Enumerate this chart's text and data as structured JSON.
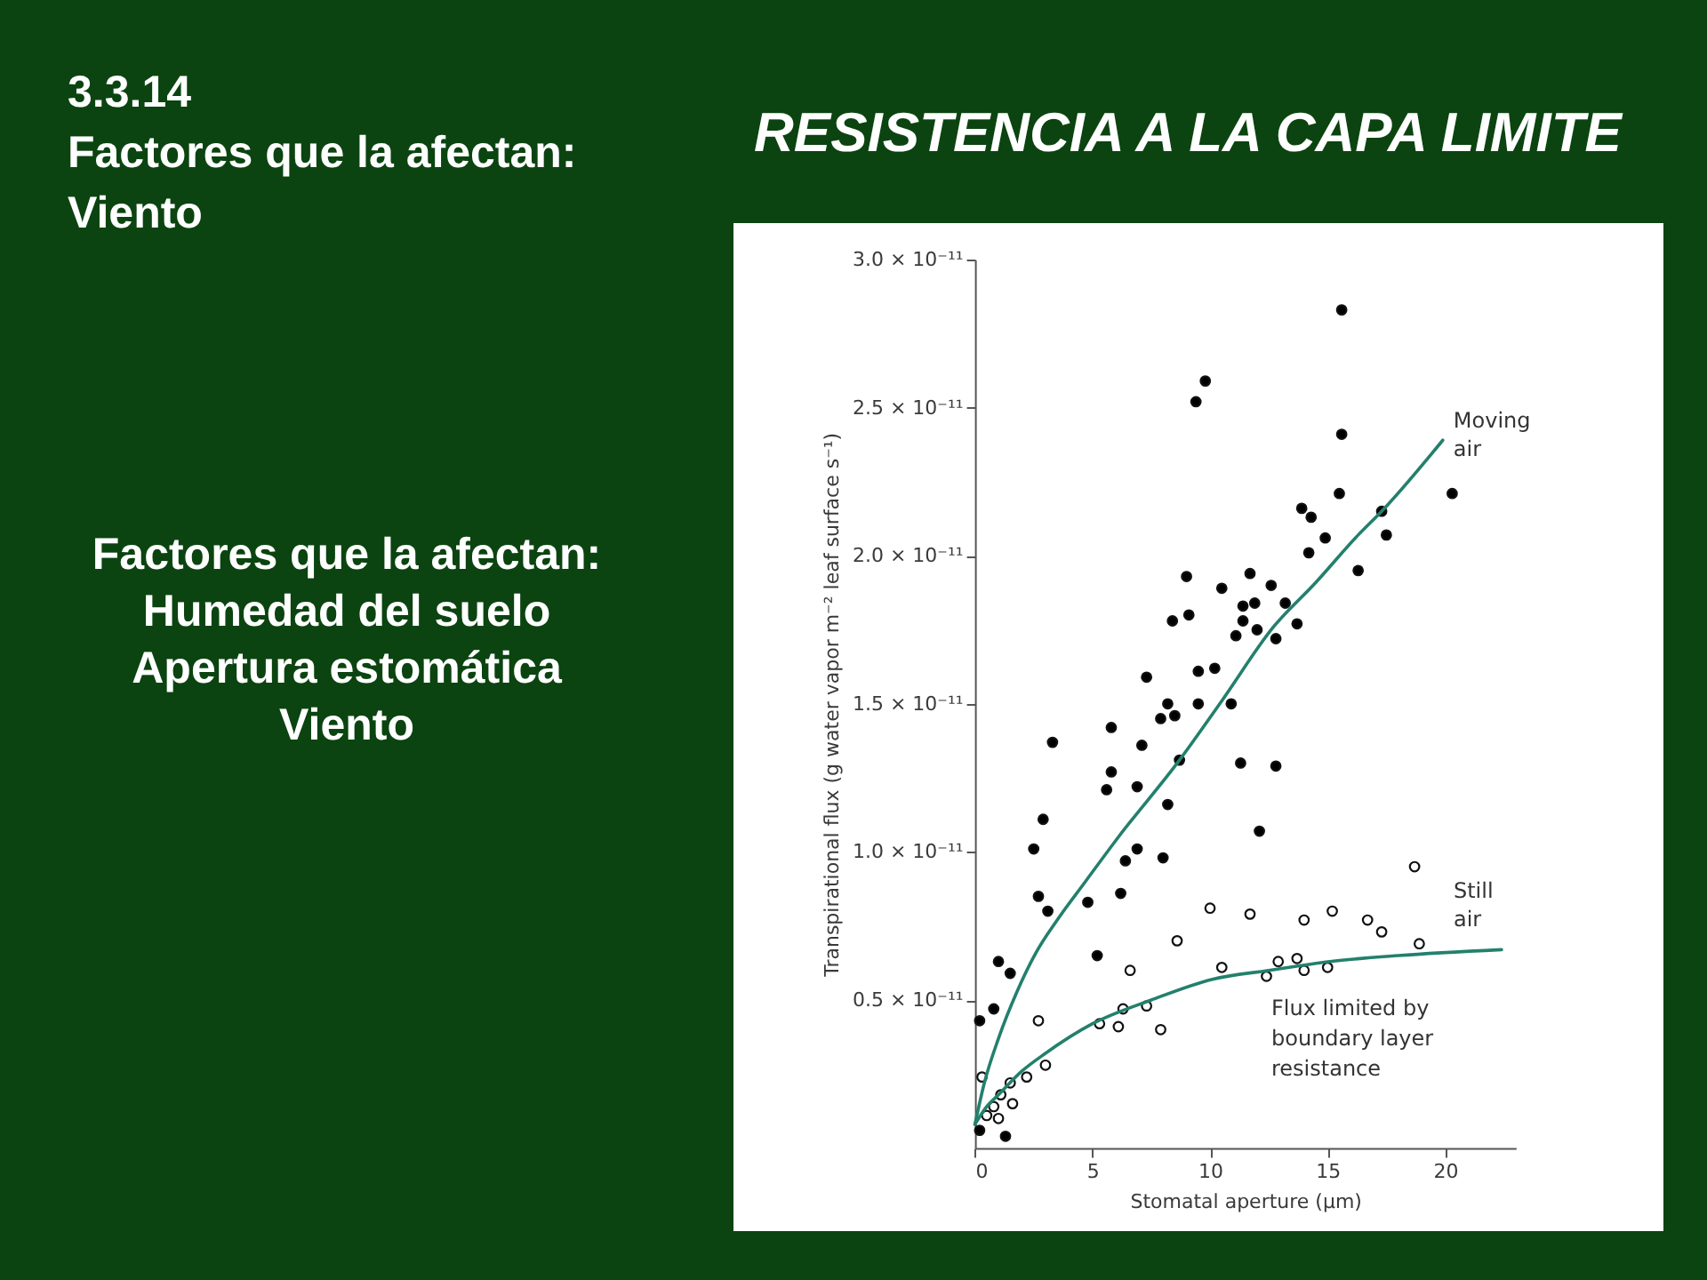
{
  "chart_data": {
    "type": "scatter",
    "title": "RESISTENCIA A LA CAPA LIMITE",
    "xlabel": "Stomatal aperture (μm)",
    "ylabel": "Transpirational flux (g water vapor  m⁻² leaf surface  s⁻¹)",
    "xlim": [
      0,
      23
    ],
    "xticks": [
      0,
      5,
      10,
      15,
      20
    ],
    "ylim": [
      0,
      3e-11
    ],
    "yticks": [
      {
        "value": 5e-12,
        "label": "0.5 × 10⁻¹¹"
      },
      {
        "value": 1e-11,
        "label": "1.0 × 10⁻¹¹"
      },
      {
        "value": 1.5e-11,
        "label": "1.5 × 10⁻¹¹"
      },
      {
        "value": 2e-11,
        "label": "2.0 × 10⁻¹¹"
      },
      {
        "value": 2.5e-11,
        "label": "2.5 × 10⁻¹¹"
      },
      {
        "value": 3e-11,
        "label": "3.0 × 10⁻¹¹"
      }
    ],
    "grid": false,
    "marker": "circle",
    "series": [
      {
        "color": "#000000",
        "x": [
          15.6,
          9.8,
          9.4,
          15.6,
          15.5,
          20.3,
          13.9,
          14.3,
          17.3,
          17.5,
          14.9,
          14.2,
          16.3,
          9.0,
          11.7,
          10.5,
          12.6,
          11.4,
          11.9,
          13.2,
          8.4,
          9.1,
          11.4,
          13.7,
          11.1,
          12.0,
          12.8,
          7.3,
          9.5,
          10.2,
          8.2,
          9.5,
          10.9,
          7.9,
          8.5,
          5.8,
          3.3,
          7.1,
          8.7,
          11.3,
          12.8,
          5.8,
          5.6,
          6.9,
          8.2,
          2.9,
          2.5,
          6.9,
          12.1,
          6.4,
          8.0,
          2.7,
          3.1,
          4.8,
          6.2,
          5.2,
          1.0,
          1.5,
          0.2,
          0.8,
          0.2,
          1.3
        ],
        "values": [
          2.83e-11,
          2.59e-11,
          2.52e-11,
          2.41e-11,
          2.21e-11,
          2.21e-11,
          2.16e-11,
          2.13e-11,
          2.15e-11,
          2.07e-11,
          2.06e-11,
          2.01e-11,
          1.95e-11,
          1.93e-11,
          1.94e-11,
          1.89e-11,
          1.9e-11,
          1.83e-11,
          1.84e-11,
          1.84e-11,
          1.78e-11,
          1.8e-11,
          1.78e-11,
          1.77e-11,
          1.73e-11,
          1.75e-11,
          1.72e-11,
          1.59e-11,
          1.61e-11,
          1.62e-11,
          1.5e-11,
          1.5e-11,
          1.5e-11,
          1.45e-11,
          1.46e-11,
          1.42e-11,
          1.37e-11,
          1.36e-11,
          1.31e-11,
          1.3e-11,
          1.29e-11,
          1.27e-11,
          1.21e-11,
          1.22e-11,
          1.16e-11,
          1.11e-11,
          1.01e-11,
          1.01e-11,
          1.07e-11,
          9.7e-12,
          9.8e-12,
          8.5e-12,
          8e-12,
          8.3e-12,
          8.6e-12,
          6.5e-12,
          6.3e-12,
          5.9e-12,
          4.3e-12,
          4.7e-12,
          6e-13,
          4e-13
        ]
      },
      {
        "color": "#ffffff",
        "x": [
          18.7,
          10.0,
          11.7,
          14.0,
          15.2,
          16.7,
          17.3,
          18.9,
          8.6,
          10.5,
          12.9,
          13.7,
          15.0,
          14.0,
          12.4,
          6.6,
          6.3,
          7.3,
          5.3,
          6.1,
          7.9,
          2.7,
          2.2,
          3.0,
          0.3,
          1.5,
          1.1,
          0.8,
          1.0,
          1.6,
          0.5
        ],
        "values": [
          9.5e-12,
          8.1e-12,
          7.9e-12,
          7.7e-12,
          8e-12,
          7.7e-12,
          7.3e-12,
          6.9e-12,
          7e-12,
          6.1e-12,
          6.3e-12,
          6.4e-12,
          6.1e-12,
          6e-12,
          5.8e-12,
          6e-12,
          4.7e-12,
          4.8e-12,
          4.2e-12,
          4.1e-12,
          4e-12,
          4.3e-12,
          2.4e-12,
          2.8e-12,
          2.4e-12,
          2.2e-12,
          1.8e-12,
          1.4e-12,
          1e-12,
          1.5e-12,
          1.1e-12
        ]
      },
      {
        "type": "line",
        "name": "Moving air",
        "color": "#23806c",
        "marker": "none",
        "x": [
          0,
          0.4,
          1,
          1.8,
          2.6,
          3.5,
          4.7,
          6.1,
          8.7,
          10.5,
          12.7,
          14.5,
          16.3,
          17.3,
          19.9
        ],
        "values": [
          8e-13,
          2.2e-12,
          3.7e-12,
          5.3e-12,
          6.6e-12,
          7.7e-12,
          9e-12,
          1.05e-11,
          1.31e-11,
          1.51e-11,
          1.76e-11,
          1.91e-11,
          2.07e-11,
          2.15e-11,
          2.39e-11
        ]
      },
      {
        "type": "line",
        "name": "Still air",
        "color": "#23806c",
        "marker": "none",
        "x": [
          0,
          0.5,
          1,
          2,
          3,
          5,
          7.5,
          10.1,
          12.5,
          15.1,
          18,
          22.4
        ],
        "values": [
          8e-13,
          1.4e-12,
          1.8e-12,
          2.6e-12,
          3.2e-12,
          4.2e-12,
          5e-12,
          5.7e-12,
          6e-12,
          6.3e-12,
          6.5e-12,
          6.7e-12
        ]
      }
    ],
    "annotations": [
      "3.3.14\nFactores que la afectan:\nViento",
      "Factores que la afectan:\nHumedad del suelo\nApertura estomática\nViento",
      "Flux limited by\nboundary layer\nresistance"
    ]
  }
}
